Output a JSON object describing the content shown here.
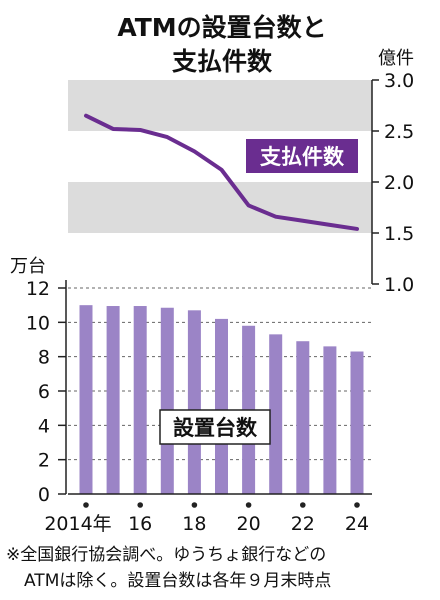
{
  "title_line1": "ATMの設置台数と",
  "title_line2": "支払件数",
  "note_line1": "※全国銀行協会調べ。ゆうちょ銀行などの",
  "note_line2": "ATMは除く。設置台数は各年９月末時点",
  "chart_data": [
    {
      "type": "line",
      "series": [
        {
          "name": "支払件数",
          "x": [
            2014,
            2015,
            2016,
            2017,
            2018,
            2019,
            2020,
            2021,
            2022,
            2023,
            2024
          ],
          "values": [
            2.65,
            2.52,
            2.51,
            2.44,
            2.3,
            2.12,
            1.77,
            1.66,
            1.62,
            1.58,
            1.54
          ]
        }
      ],
      "ylabel": "億件",
      "ylim": [
        1.0,
        3.0
      ],
      "y_ticks": [
        "1.0",
        "1.5",
        "2.0",
        "2.5",
        "3.0"
      ],
      "y_axis_side": "right",
      "color": "#6a2d90",
      "grid": "alternating gray bands"
    },
    {
      "type": "bar",
      "series": [
        {
          "name": "設置台数",
          "categories": [
            2014,
            2015,
            2016,
            2017,
            2018,
            2019,
            2020,
            2021,
            2022,
            2023,
            2024
          ],
          "values": [
            11.0,
            10.95,
            10.95,
            10.85,
            10.7,
            10.2,
            9.8,
            9.3,
            8.9,
            8.6,
            8.3
          ]
        }
      ],
      "ylabel": "万台",
      "ylim": [
        0,
        12
      ],
      "y_ticks": [
        "0",
        "2",
        "4",
        "6",
        "8",
        "10",
        "12"
      ],
      "x_tick_labels": [
        "2014年",
        "16",
        "18",
        "20",
        "22",
        "24"
      ],
      "x_tick_years": [
        2014,
        2016,
        2018,
        2020,
        2022,
        2024
      ],
      "color": "#9b84c6",
      "grid": "dashed horizontal"
    }
  ]
}
